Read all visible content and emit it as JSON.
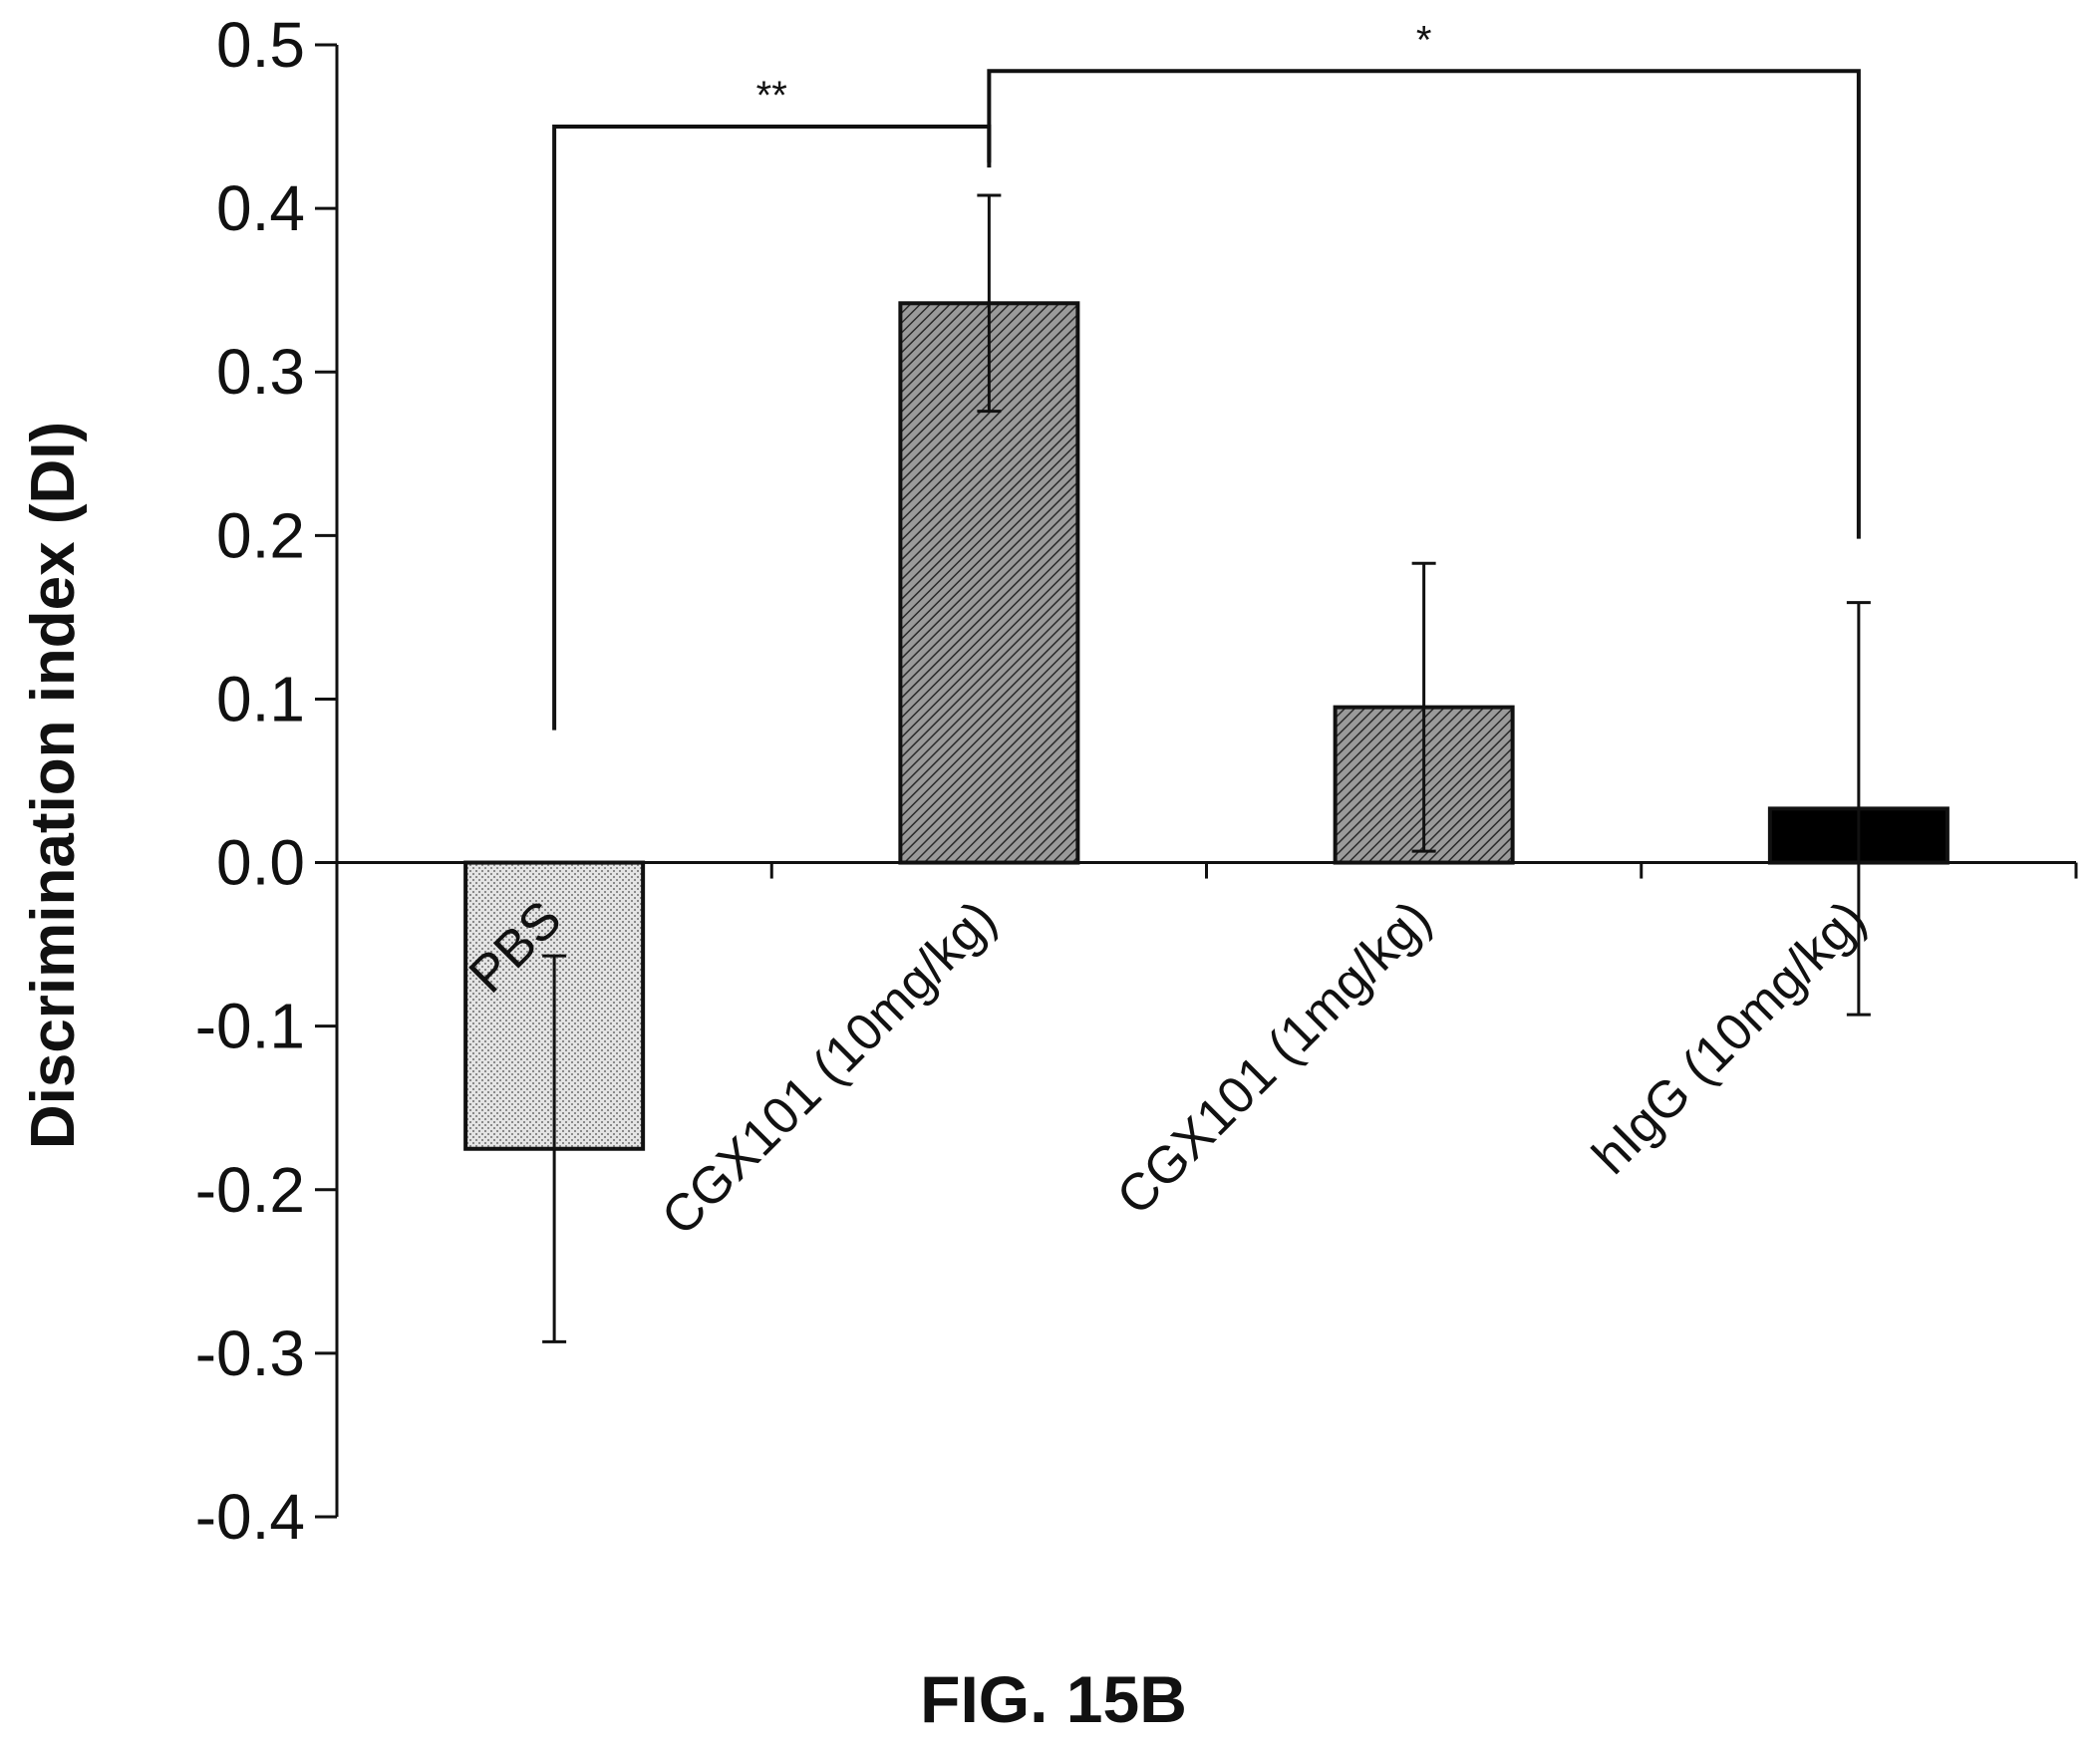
{
  "chart_data": {
    "type": "bar",
    "ylabel": "Discrimination index (DI)",
    "xlabel": "",
    "ylim": [
      -0.4,
      0.5
    ],
    "yticks": [
      "0.5",
      "0.4",
      "0.3",
      "0.2",
      "0.1",
      "0.0",
      "-0.1",
      "-0.2",
      "-0.3",
      "-0.4"
    ],
    "ytick_values": [
      0.5,
      0.4,
      0.3,
      0.2,
      0.1,
      0.0,
      -0.1,
      -0.2,
      -0.3,
      -0.4
    ],
    "categories": [
      "PBS",
      "CGX101 (10mg/kg)",
      "CGX101 (1mg/kg)",
      "hIgG (10mg/kg)"
    ],
    "values": [
      -0.175,
      0.342,
      0.095,
      0.033
    ],
    "errors": [
      0.118,
      0.066,
      0.088,
      0.126
    ],
    "bar_styles": [
      "light-dots",
      "hatch",
      "hatch",
      "solid"
    ],
    "significance": [
      {
        "from": "PBS",
        "to": "CGX101 (10mg/kg)",
        "label": "**"
      },
      {
        "from": "CGX101 (10mg/kg)",
        "to": "hIgG (10mg/kg)",
        "label": "*"
      }
    ],
    "grid": false
  },
  "caption": "FIG. 15B"
}
